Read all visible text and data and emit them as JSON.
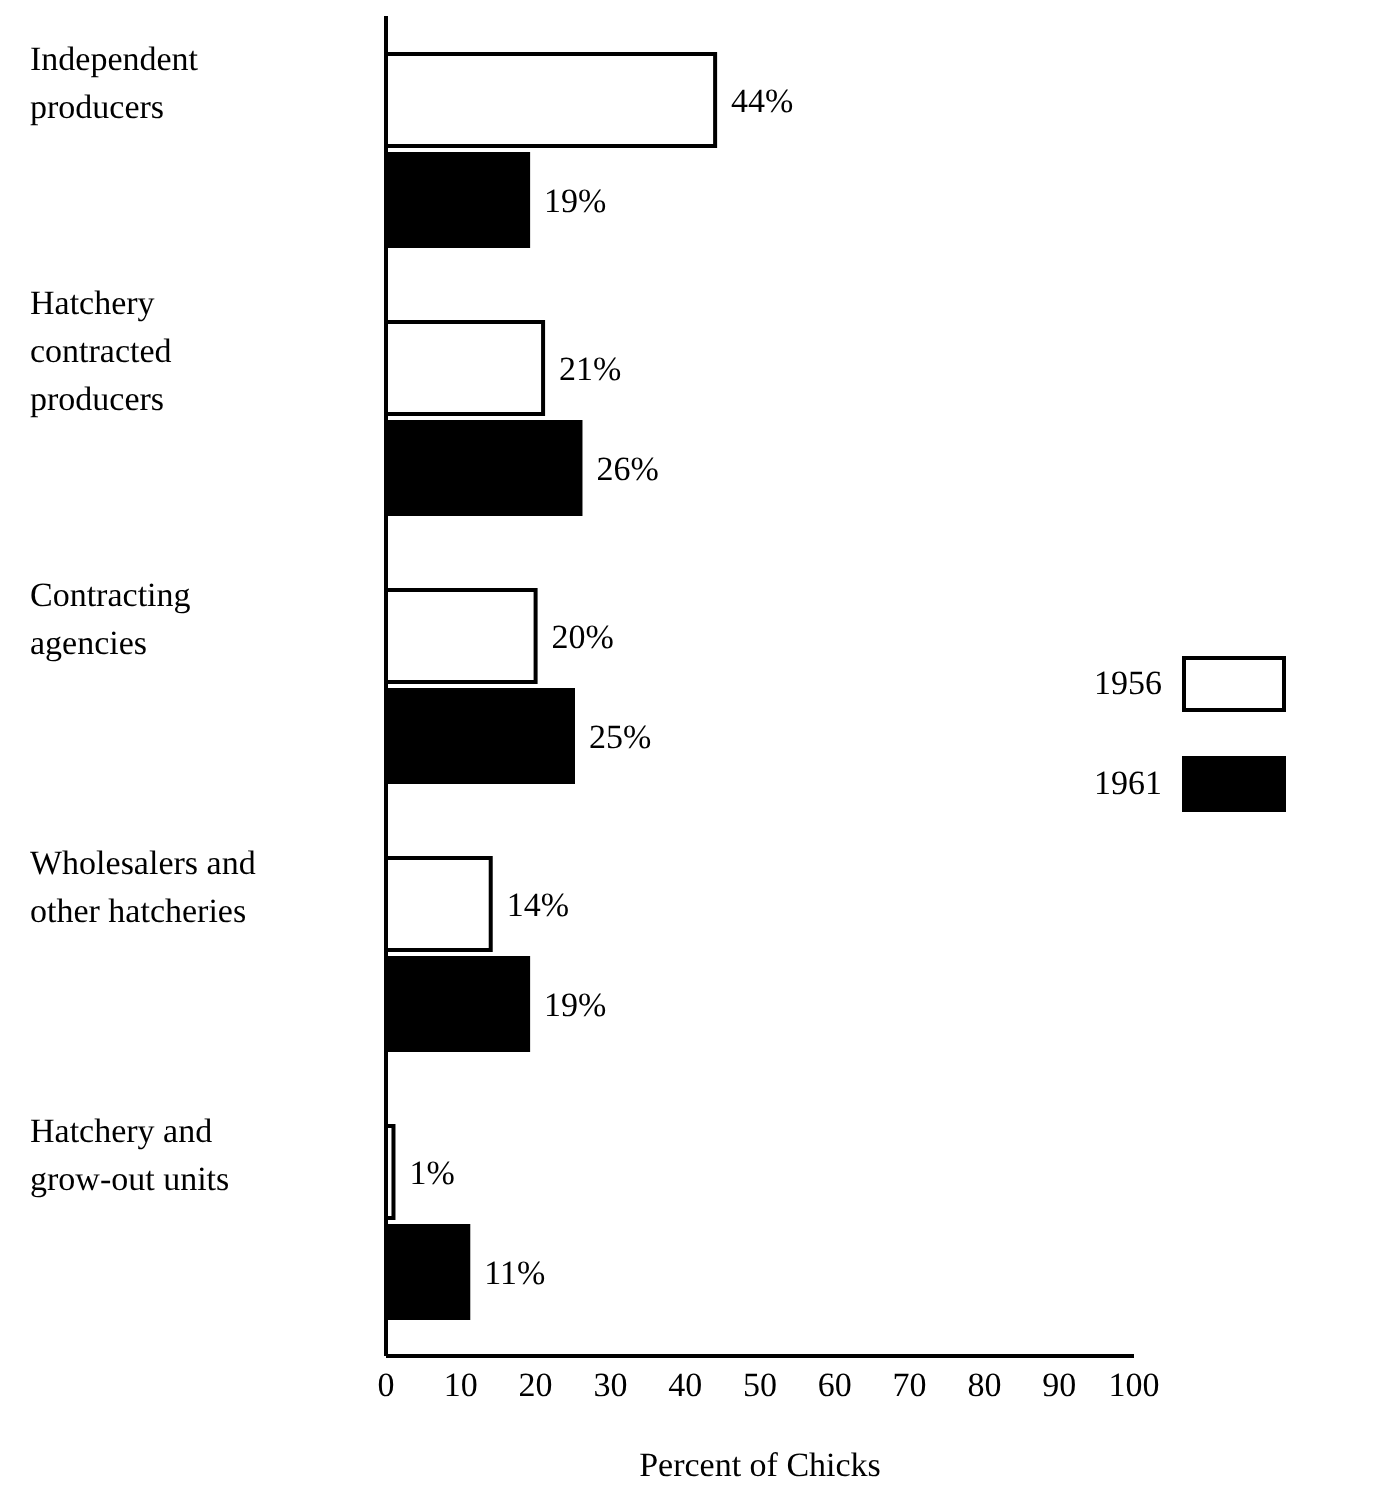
{
  "chart_data": {
    "type": "bar",
    "orientation": "horizontal",
    "categories": [
      "Independent producers",
      "Hatchery contracted producers",
      "Contracting agencies",
      "Wholesalers and other hatcheries",
      "Hatchery and grow-out units"
    ],
    "series": [
      {
        "name": "1956",
        "color": "#ffffff",
        "values": [
          44,
          21,
          20,
          14,
          1
        ],
        "value_labels": [
          "44%",
          "21%",
          "20%",
          "14%",
          "1%"
        ]
      },
      {
        "name": "1961",
        "color": "#000000",
        "values": [
          19,
          26,
          25,
          19,
          11
        ],
        "value_labels": [
          "19%",
          "26%",
          "25%",
          "19%",
          "11%"
        ]
      }
    ],
    "xlabel": "Percent of Chicks",
    "xlim": [
      0,
      100
    ],
    "xticks": [
      0,
      10,
      20,
      30,
      40,
      50,
      60,
      70,
      80,
      90,
      100
    ],
    "legend": "center right",
    "grid": false
  }
}
